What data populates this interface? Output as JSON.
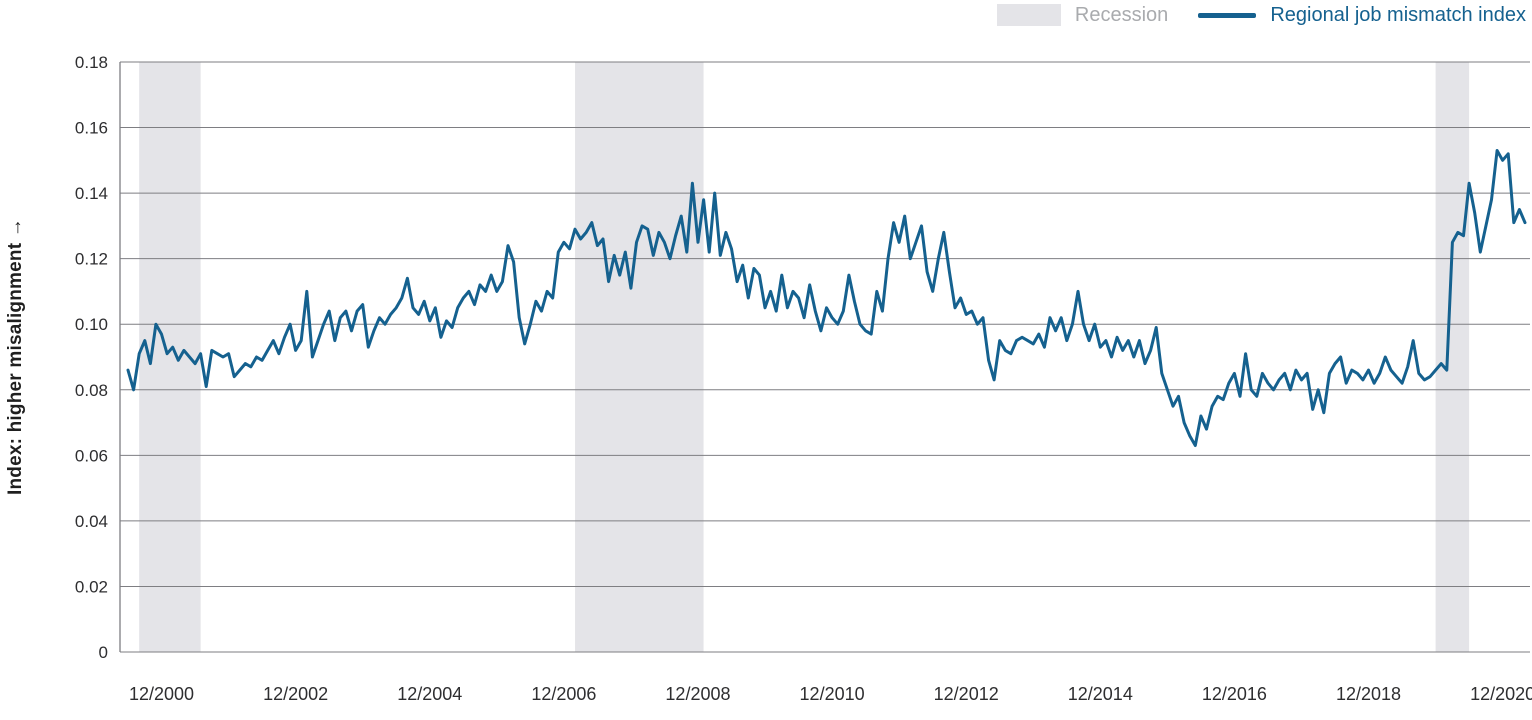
{
  "legend": {
    "recession_label": "Recession",
    "series_label": "Regional job mismatch index"
  },
  "chart_data": {
    "type": "line",
    "title": "",
    "ylabel": "Index: higher misalignment",
    "ylabel_display": "Index: higher misalignment →",
    "ylim": [
      0,
      0.18
    ],
    "grid": true,
    "legend_position": "top-right",
    "x_start": "2000-06",
    "x_frequency": "monthly",
    "x_ticks": [
      {
        "label": "12/2000",
        "index": 6
      },
      {
        "label": "12/2002",
        "index": 30
      },
      {
        "label": "12/2004",
        "index": 54
      },
      {
        "label": "12/2006",
        "index": 78
      },
      {
        "label": "12/2008",
        "index": 102
      },
      {
        "label": "12/2010",
        "index": 126
      },
      {
        "label": "12/2012",
        "index": 150
      },
      {
        "label": "12/2014",
        "index": 174
      },
      {
        "label": "12/2016",
        "index": 198
      },
      {
        "label": "12/2018",
        "index": 222
      },
      {
        "label": "12/2020",
        "index": 246
      }
    ],
    "y_ticks": [
      {
        "v": 0,
        "label": "0"
      },
      {
        "v": 0.02,
        "label": "0.02"
      },
      {
        "v": 0.04,
        "label": "0.04"
      },
      {
        "v": 0.06,
        "label": "0.06"
      },
      {
        "v": 0.08,
        "label": "0.08"
      },
      {
        "v": 0.1,
        "label": "0.10"
      },
      {
        "v": 0.12,
        "label": "0.12"
      },
      {
        "v": 0.14,
        "label": "0.14"
      },
      {
        "v": 0.16,
        "label": "0.16"
      },
      {
        "v": 0.18,
        "label": "0.18"
      }
    ],
    "recessions": [
      {
        "start": "2000-08",
        "end": "2001-07",
        "start_index": 2,
        "end_index": 13
      },
      {
        "start": "2007-02",
        "end": "2009-01",
        "start_index": 80,
        "end_index": 103
      },
      {
        "start": "2019-12",
        "end": "2020-06",
        "start_index": 234,
        "end_index": 240
      }
    ],
    "series": [
      {
        "name": "Regional job mismatch index",
        "values": [
          0.086,
          0.08,
          0.091,
          0.095,
          0.088,
          0.1,
          0.097,
          0.091,
          0.093,
          0.089,
          0.092,
          0.09,
          0.088,
          0.091,
          0.081,
          0.092,
          0.091,
          0.09,
          0.091,
          0.084,
          0.086,
          0.088,
          0.087,
          0.09,
          0.089,
          0.092,
          0.095,
          0.091,
          0.096,
          0.1,
          0.092,
          0.095,
          0.11,
          0.09,
          0.095,
          0.1,
          0.104,
          0.095,
          0.102,
          0.104,
          0.098,
          0.104,
          0.106,
          0.093,
          0.098,
          0.102,
          0.1,
          0.103,
          0.105,
          0.108,
          0.114,
          0.105,
          0.103,
          0.107,
          0.101,
          0.105,
          0.096,
          0.101,
          0.099,
          0.105,
          0.108,
          0.11,
          0.106,
          0.112,
          0.11,
          0.115,
          0.11,
          0.113,
          0.124,
          0.119,
          0.102,
          0.094,
          0.1,
          0.107,
          0.104,
          0.11,
          0.108,
          0.122,
          0.125,
          0.123,
          0.129,
          0.126,
          0.128,
          0.131,
          0.124,
          0.126,
          0.113,
          0.121,
          0.115,
          0.122,
          0.111,
          0.125,
          0.13,
          0.129,
          0.121,
          0.128,
          0.125,
          0.12,
          0.127,
          0.133,
          0.122,
          0.143,
          0.125,
          0.138,
          0.122,
          0.14,
          0.121,
          0.128,
          0.123,
          0.113,
          0.118,
          0.108,
          0.117,
          0.115,
          0.105,
          0.11,
          0.104,
          0.115,
          0.105,
          0.11,
          0.108,
          0.102,
          0.112,
          0.104,
          0.098,
          0.105,
          0.102,
          0.1,
          0.104,
          0.115,
          0.107,
          0.1,
          0.098,
          0.097,
          0.11,
          0.104,
          0.12,
          0.131,
          0.125,
          0.133,
          0.12,
          0.125,
          0.13,
          0.116,
          0.11,
          0.12,
          0.128,
          0.116,
          0.105,
          0.108,
          0.103,
          0.104,
          0.1,
          0.102,
          0.089,
          0.083,
          0.095,
          0.092,
          0.091,
          0.095,
          0.096,
          0.095,
          0.094,
          0.097,
          0.093,
          0.102,
          0.098,
          0.102,
          0.095,
          0.1,
          0.11,
          0.1,
          0.095,
          0.1,
          0.093,
          0.095,
          0.09,
          0.096,
          0.092,
          0.095,
          0.09,
          0.095,
          0.088,
          0.092,
          0.099,
          0.085,
          0.08,
          0.075,
          0.078,
          0.07,
          0.066,
          0.063,
          0.072,
          0.068,
          0.075,
          0.078,
          0.077,
          0.082,
          0.085,
          0.078,
          0.091,
          0.08,
          0.078,
          0.085,
          0.082,
          0.08,
          0.083,
          0.085,
          0.08,
          0.086,
          0.083,
          0.085,
          0.074,
          0.08,
          0.073,
          0.085,
          0.088,
          0.09,
          0.082,
          0.086,
          0.085,
          0.083,
          0.086,
          0.082,
          0.085,
          0.09,
          0.086,
          0.084,
          0.082,
          0.087,
          0.095,
          0.085,
          0.083,
          0.084,
          0.086,
          0.088,
          0.086,
          0.125,
          0.128,
          0.127,
          0.143,
          0.134,
          0.122,
          0.13,
          0.138,
          0.153,
          0.15,
          0.152,
          0.131,
          0.135,
          0.131
        ]
      }
    ],
    "colors": {
      "line": "#15618f",
      "band": "#e4e4e8",
      "grid": "#7e7e82",
      "tick_text": "#2e2e30",
      "recession_legend_text": "#a9abae"
    }
  }
}
